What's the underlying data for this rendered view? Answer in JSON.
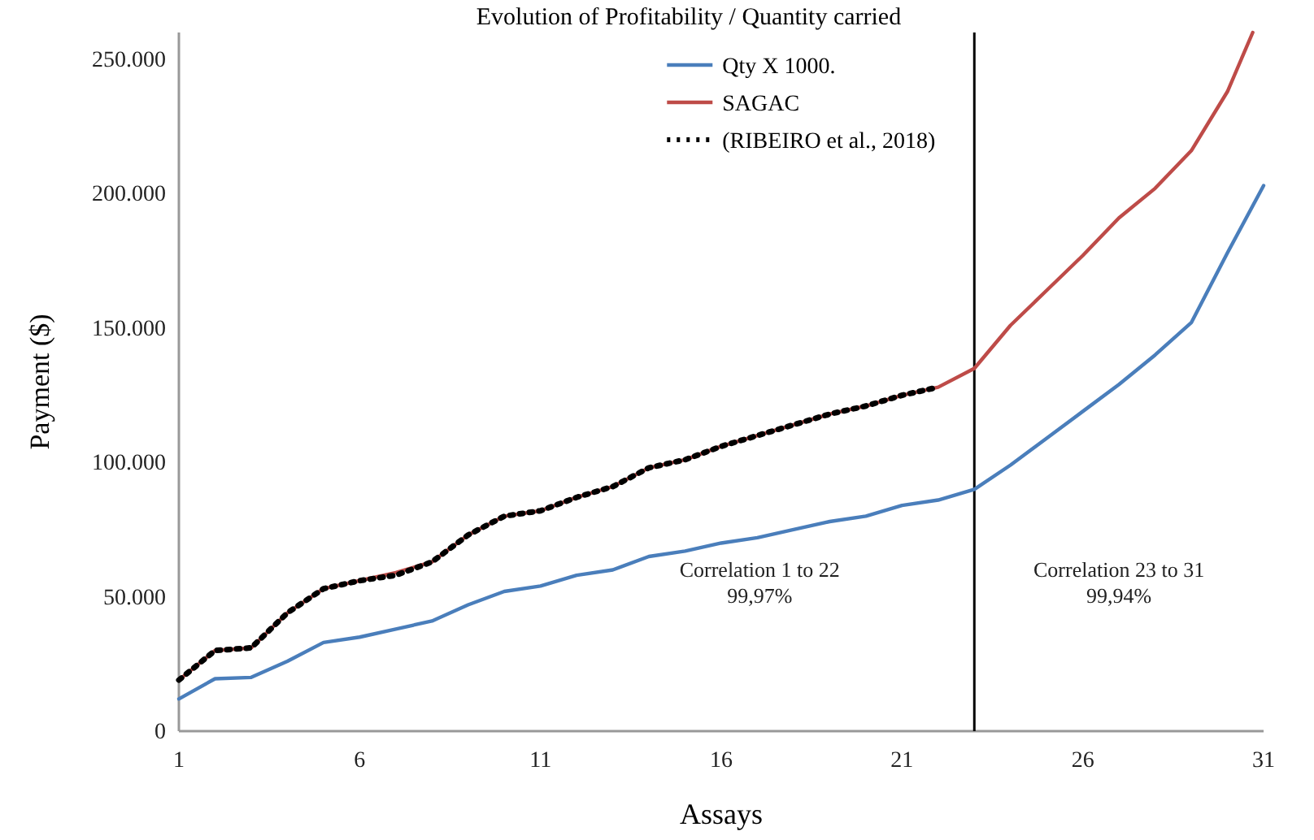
{
  "chart_data": {
    "type": "line",
    "title": "Evolution of Profitability / Quantity carried",
    "xlabel": "Assays",
    "ylabel": "Payment ($)",
    "x": [
      1,
      2,
      3,
      4,
      5,
      6,
      7,
      8,
      9,
      10,
      11,
      12,
      13,
      14,
      15,
      16,
      17,
      18,
      19,
      20,
      21,
      22,
      23,
      24,
      25,
      26,
      27,
      28,
      29,
      30,
      31
    ],
    "series": [
      {
        "name": "Qty X 1000.",
        "color": "#4a7ebb",
        "values": [
          12000,
          19500,
          20000,
          26000,
          33000,
          35000,
          38000,
          41000,
          47000,
          52000,
          54000,
          58000,
          60000,
          65000,
          67000,
          70000,
          72000,
          75000,
          78000,
          80000,
          84000,
          86000,
          90000,
          99000,
          109000,
          119000,
          129000,
          140000,
          152000,
          178000,
          203000
        ]
      },
      {
        "name": "SAGAC",
        "color": "#be4b48",
        "x": [
          1,
          2,
          3,
          4,
          5,
          6,
          7,
          8,
          9,
          10,
          11,
          12,
          13,
          14,
          15,
          16,
          17,
          18,
          19,
          20,
          21,
          22,
          23,
          24,
          25,
          26,
          27,
          28,
          29,
          30,
          30.7
        ],
        "values": [
          19000,
          30000,
          31000,
          44000,
          53000,
          56000,
          59000,
          63000,
          73000,
          80000,
          82000,
          87000,
          91000,
          98000,
          101000,
          106000,
          110000,
          114000,
          118000,
          121000,
          125000,
          128000,
          135000,
          151000,
          164000,
          177000,
          191000,
          202000,
          216000,
          238000,
          260000
        ]
      },
      {
        "name": "(RIBEIRO et al., 2018)",
        "color": "#000000",
        "line_style": "dotted",
        "x": [
          1,
          2,
          3,
          4,
          5,
          6,
          7,
          8,
          9,
          10,
          11,
          12,
          13,
          14,
          15,
          16,
          17,
          18,
          19,
          20,
          21,
          22
        ],
        "values": [
          19000,
          30000,
          31000,
          44000,
          53000,
          56000,
          58000,
          63000,
          73000,
          80000,
          82000,
          87000,
          91000,
          98000,
          101000,
          106000,
          110000,
          114000,
          118000,
          121000,
          125000,
          128000
        ]
      }
    ],
    "xlim": [
      1,
      31
    ],
    "xticks": [
      1,
      6,
      11,
      16,
      21,
      26,
      31
    ],
    "ylim": [
      0,
      260000
    ],
    "yticks": [
      {
        "value": 0,
        "label": "0"
      },
      {
        "value": 50000,
        "label": "50.000"
      },
      {
        "value": 100000,
        "label": "100.000"
      },
      {
        "value": 150000,
        "label": "150.000"
      },
      {
        "value": 200000,
        "label": "200.000"
      },
      {
        "value": 250000,
        "label": "250.000"
      }
    ],
    "ref_lines": [
      {
        "axis": "x",
        "value": 23,
        "color": "#000000"
      }
    ],
    "annotations": [
      "Correlation 1 to 22\n99,97%",
      "Correlation 23 to 31\n99,94%"
    ],
    "legend": "top",
    "grid": false
  }
}
